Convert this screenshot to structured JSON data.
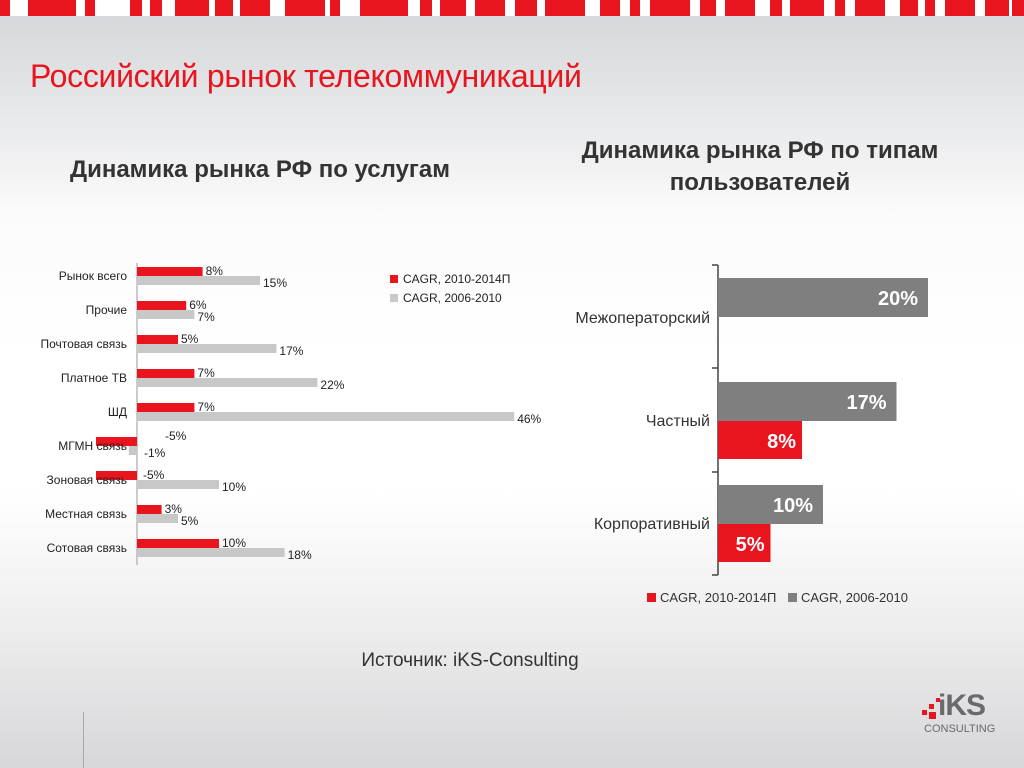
{
  "slide": {
    "title": "Российский рынок телекоммуникаций",
    "source": "Источник: iKS-Consulting",
    "logo_text": "iKS",
    "logo_subtext": "CONSULTING",
    "accent_color": "#e8141e"
  },
  "chart_data": [
    {
      "type": "bar",
      "orientation": "horizontal",
      "title": "Динамика рынка РФ по услугам",
      "categories": [
        "Рынок всего",
        "Прочие",
        "Почтовая связь",
        "Платное ТВ",
        "ШД",
        "МГМН связь",
        "Зоновая связь",
        "Местная связь",
        "Сотовая связь"
      ],
      "series": [
        {
          "name": "CAGR, 2010-2014П",
          "color": "#e8141e",
          "values": [
            8,
            6,
            5,
            7,
            7,
            -5,
            -5,
            3,
            10
          ],
          "labels": [
            "8%",
            "6%",
            "5%",
            "7%",
            "7%",
            "-5%",
            "-5%",
            "3%",
            "10%"
          ]
        },
        {
          "name": "CAGR, 2006-2010",
          "color": "#c8c8c8",
          "values": [
            15,
            7,
            17,
            22,
            46,
            -1,
            10,
            5,
            18
          ],
          "labels": [
            "15%",
            "7%",
            "17%",
            "22%",
            "46%",
            "-1%",
            "10%",
            "5%",
            "18%"
          ]
        }
      ],
      "legend": "top-right",
      "grid": false
    },
    {
      "type": "bar",
      "orientation": "horizontal",
      "title": "Динамика рынка РФ по типам пользователей",
      "categories": [
        "Межоператорский",
        "Частный",
        "Корпоративный"
      ],
      "series": [
        {
          "name": "CAGR, 2010-2014П",
          "color": "#e8141e",
          "values": [
            null,
            8,
            5
          ],
          "labels": [
            "",
            "8%",
            "5%"
          ]
        },
        {
          "name": "CAGR, 2006-2010",
          "color": "#7f7f7f",
          "values": [
            20,
            17,
            10
          ],
          "labels": [
            "20%",
            "17%",
            "10%"
          ]
        }
      ],
      "legend": "bottom",
      "grid": false
    }
  ]
}
